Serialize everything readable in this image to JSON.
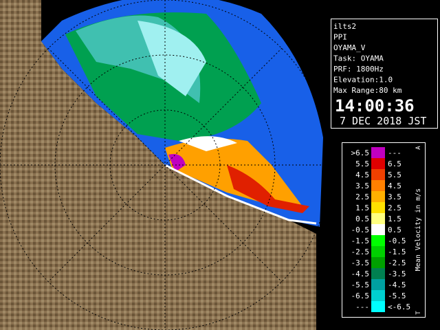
{
  "info": {
    "lines": [
      "ilts2",
      "PPI",
      "OYAMA_V",
      "Task: OYAMA",
      "PRF: 1800Hz",
      "Elevation:1.0",
      "Max Range:80 km"
    ],
    "time": "14:00:36",
    "date": "7 DEC 2018 JST"
  },
  "legend": {
    "title": "Mean Velocity in m/s",
    "top_mark": "A",
    "bottom_mark": "T",
    "rows": [
      {
        "left": ">6.5",
        "right": "---",
        "color": "#c000c0"
      },
      {
        "left": "5.5",
        "right": "6.5",
        "color": "#e00000"
      },
      {
        "left": "4.5",
        "right": "5.5",
        "color": "#f04000"
      },
      {
        "left": "3.5",
        "right": "4.5",
        "color": "#ff8000"
      },
      {
        "left": "2.5",
        "right": "3.5",
        "color": "#ffb000"
      },
      {
        "left": "1.5",
        "right": "2.5",
        "color": "#ffe000"
      },
      {
        "left": "0.5",
        "right": "1.5",
        "color": "#ffff80"
      },
      {
        "left": "-0.5",
        "right": "0.5",
        "color": "#ffffff"
      },
      {
        "left": "-1.5",
        "right": "-0.5",
        "color": "#00ff00"
      },
      {
        "left": "-2.5",
        "right": "-1.5",
        "color": "#00d000"
      },
      {
        "left": "-3.5",
        "right": "-2.5",
        "color": "#00a000"
      },
      {
        "left": "-4.5",
        "right": "-3.5",
        "color": "#008050"
      },
      {
        "left": "-5.5",
        "right": "-4.5",
        "color": "#00a0a0"
      },
      {
        "left": "-6.5",
        "right": "-5.5",
        "color": "#00d0d0"
      },
      {
        "left": "---",
        "right": "<-6.5",
        "color": "#00ffff"
      }
    ]
  }
}
